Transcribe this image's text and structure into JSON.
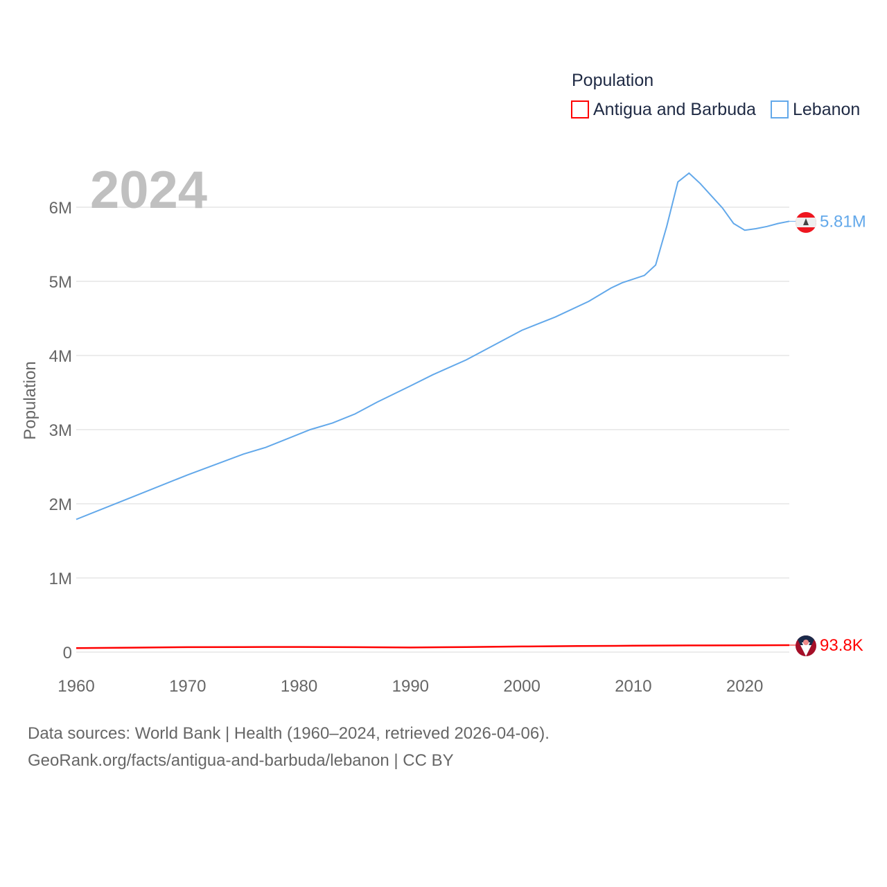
{
  "chart_data": {
    "type": "line",
    "year_label": "2024",
    "ylabel": "Population",
    "xlabel": "",
    "xlim": [
      1960,
      2024
    ],
    "ylim": [
      0,
      6500000
    ],
    "x_ticks": [
      1960,
      1970,
      1980,
      1990,
      2000,
      2010,
      2020
    ],
    "x_tick_labels": [
      "1960",
      "1970",
      "1980",
      "1990",
      "2000",
      "2010",
      "2020"
    ],
    "y_ticks": [
      0,
      1000000,
      2000000,
      3000000,
      4000000,
      5000000,
      6000000
    ],
    "y_tick_labels": [
      "0",
      "1M",
      "2M",
      "3M",
      "4M",
      "5M",
      "6M"
    ],
    "grid": true,
    "legend": {
      "title": "Population",
      "placement": "top-right"
    },
    "series": [
      {
        "name": "Antigua and Barbuda",
        "color": "#ff0000",
        "end_label": "93.8K",
        "points": [
          [
            1960,
            54000
          ],
          [
            1965,
            60000
          ],
          [
            1970,
            66000
          ],
          [
            1975,
            68000
          ],
          [
            1980,
            69000
          ],
          [
            1985,
            66000
          ],
          [
            1990,
            62000
          ],
          [
            1995,
            68000
          ],
          [
            2000,
            76000
          ],
          [
            2005,
            81000
          ],
          [
            2010,
            86000
          ],
          [
            2015,
            90000
          ],
          [
            2020,
            92000
          ],
          [
            2024,
            93800
          ]
        ]
      },
      {
        "name": "Lebanon",
        "color": "#62a8ea",
        "end_label": "5.81M",
        "points": [
          [
            1960,
            1790000
          ],
          [
            1965,
            2090000
          ],
          [
            1970,
            2390000
          ],
          [
            1975,
            2670000
          ],
          [
            1977,
            2760000
          ],
          [
            1981,
            3000000
          ],
          [
            1983,
            3090000
          ],
          [
            1985,
            3210000
          ],
          [
            1987,
            3370000
          ],
          [
            1990,
            3590000
          ],
          [
            1992,
            3740000
          ],
          [
            1995,
            3940000
          ],
          [
            2000,
            4340000
          ],
          [
            2001,
            4400000
          ],
          [
            2003,
            4520000
          ],
          [
            2006,
            4730000
          ],
          [
            2008,
            4910000
          ],
          [
            2009,
            4980000
          ],
          [
            2011,
            5080000
          ],
          [
            2012,
            5220000
          ],
          [
            2013,
            5740000
          ],
          [
            2014,
            6340000
          ],
          [
            2015,
            6460000
          ],
          [
            2016,
            6320000
          ],
          [
            2018,
            5990000
          ],
          [
            2019,
            5780000
          ],
          [
            2020,
            5690000
          ],
          [
            2021,
            5710000
          ],
          [
            2022,
            5740000
          ],
          [
            2023,
            5780000
          ],
          [
            2024,
            5810000
          ]
        ]
      }
    ]
  },
  "footer": {
    "line1": "Data sources: World Bank | Health (1960–2024, retrieved 2026-04-06).",
    "line2": "GeoRank.org/facts/antigua-and-barbuda/lebanon | CC BY"
  }
}
